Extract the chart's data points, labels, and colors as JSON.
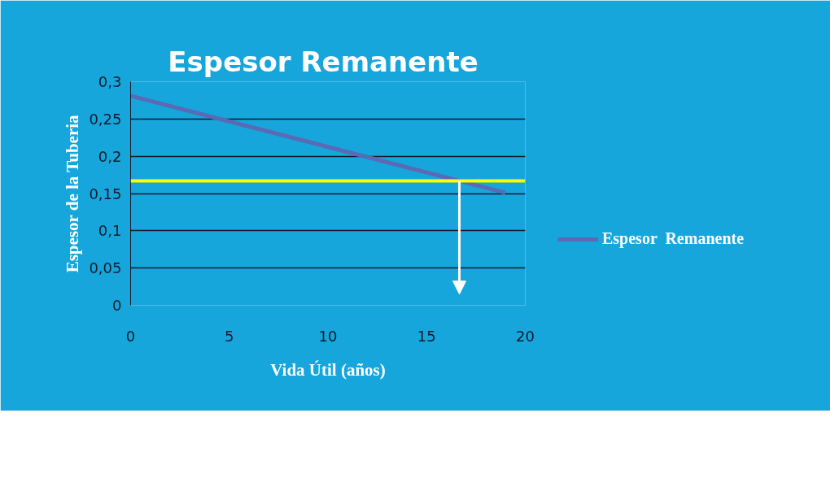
{
  "chart_data": {
    "type": "line",
    "title": "Espesor  Remanente",
    "xlabel": "Vida Útil (años)",
    "ylabel": "Espesor de la Tuberia",
    "x": [
      0,
      19
    ],
    "series": [
      {
        "name": "Espesor  Remanente",
        "color": "#5a6ab4",
        "values": [
          0.281,
          0.151
        ]
      }
    ],
    "xlim": [
      0,
      20
    ],
    "xticks": [
      0,
      5,
      10,
      15,
      20
    ],
    "ylim": [
      0,
      0.3
    ],
    "yticks": [
      {
        "value": 0,
        "label": "0"
      },
      {
        "value": 0.05,
        "label": "0,05"
      },
      {
        "value": 0.1,
        "label": "0,1"
      },
      {
        "value": 0.15,
        "label": "0,15"
      },
      {
        "value": 0.2,
        "label": "0,2"
      },
      {
        "value": 0.25,
        "label": "0,25"
      },
      {
        "value": 0.3,
        "label": "0,3"
      }
    ],
    "ref_lines": [
      {
        "axis": "y",
        "value": 0.167,
        "color": "#ffff00"
      }
    ],
    "grid": "y",
    "legend": "right",
    "marker": "none",
    "line_style": "solid"
  }
}
